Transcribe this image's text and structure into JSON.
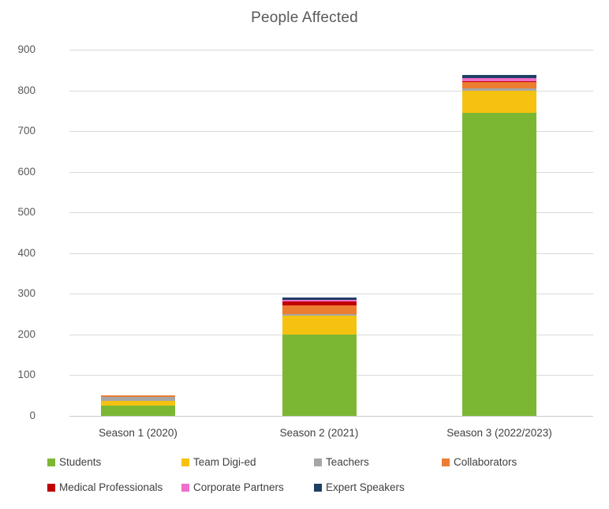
{
  "title": "People Affected",
  "chart_data": {
    "type": "stacked-bar",
    "title": "People Affected",
    "categories": [
      "Season 1 (2020)",
      "Season 2 (2021)",
      "Season 3 (2022/2023)"
    ],
    "series": [
      {
        "name": "Students",
        "color": "#7CB734",
        "values": [
          25,
          200,
          745
        ]
      },
      {
        "name": "Team Digi-ed",
        "color": "#F5C211",
        "values": [
          10,
          45,
          55
        ]
      },
      {
        "name": "Teachers",
        "color": "#A6A6A6",
        "values": [
          10,
          5,
          5
        ]
      },
      {
        "name": "Collaborators",
        "color": "#ED7D31",
        "values": [
          5,
          20,
          15
        ]
      },
      {
        "name": "Medical Professionals",
        "color": "#C00000",
        "values": [
          0,
          10,
          3
        ]
      },
      {
        "name": "Corporate Partners",
        "color": "#F06EC7",
        "values": [
          0,
          5,
          7
        ]
      },
      {
        "name": "Expert Speakers",
        "color": "#203F66",
        "values": [
          0,
          5,
          8
        ]
      }
    ],
    "totals": [
      50,
      290,
      838
    ],
    "ylim": [
      0,
      900
    ],
    "yticks": [
      0,
      100,
      200,
      300,
      400,
      500,
      600,
      700,
      800,
      900
    ],
    "grid": true,
    "gridline_color": "#D9D9D9",
    "legend_position": "bottom",
    "text_colors": {
      "title": "#595959",
      "ticks": "#595959",
      "labels": "#404040"
    }
  }
}
